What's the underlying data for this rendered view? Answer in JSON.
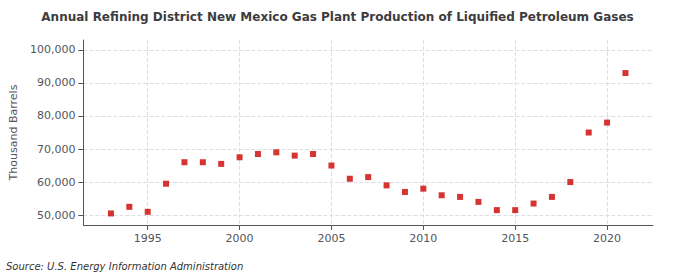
{
  "chart_data": {
    "type": "scatter",
    "title": "Annual Refining District New Mexico Gas Plant Production of Liquified Petroleum Gases",
    "ylabel": "Thousand Barrels",
    "annotation": "Source: U.S. Energy Information Administration",
    "x": [
      1993,
      1994,
      1995,
      1996,
      1997,
      1998,
      1999,
      2000,
      2001,
      2002,
      2003,
      2004,
      2005,
      2006,
      2007,
      2008,
      2009,
      2010,
      2011,
      2012,
      2013,
      2014,
      2015,
      2016,
      2017,
      2018,
      2019,
      2020,
      2021
    ],
    "values": [
      50500,
      52500,
      51000,
      59500,
      66000,
      66000,
      65500,
      67500,
      68500,
      69000,
      68000,
      68500,
      65000,
      61000,
      61500,
      59000,
      57000,
      58000,
      56000,
      55500,
      54000,
      51500,
      51500,
      53500,
      55500,
      60000,
      75000,
      78000,
      93000
    ],
    "color": "#cc0000",
    "marker": "square",
    "xlim": [
      1991.5,
      2022.5
    ],
    "xticks": [
      1995,
      2000,
      2005,
      2010,
      2015,
      2020
    ],
    "ylim": [
      47000,
      103000
    ],
    "yticks": [
      {
        "value": 50000,
        "label": "50,000"
      },
      {
        "value": 60000,
        "label": "60,000"
      },
      {
        "value": 70000,
        "label": "70,000"
      },
      {
        "value": 80000,
        "label": "80,000"
      },
      {
        "value": 90000,
        "label": "90,000"
      },
      {
        "value": 100000,
        "label": "100,000"
      }
    ],
    "grid": true
  }
}
